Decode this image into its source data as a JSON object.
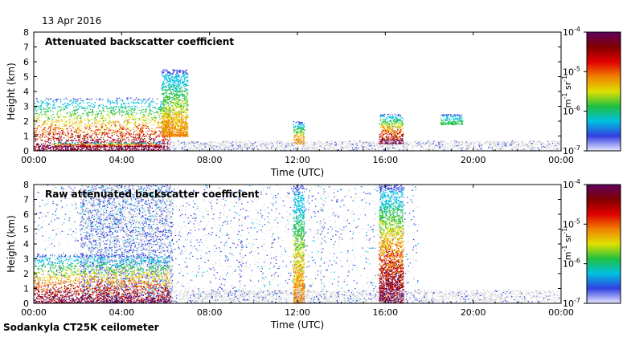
{
  "date": "13 Apr 2016",
  "instrument": "Sodankyla CT25K ceilometer",
  "colors": {
    "colormap": [
      "#e8e8ff",
      "#3040e0",
      "#00c0e0",
      "#20c040",
      "#e0e000",
      "#f08000",
      "#e00000",
      "#800000",
      "#600060"
    ],
    "no_signal_gray": "#d8d8d8"
  },
  "chart_data": [
    {
      "type": "heatmap",
      "title": "Attenuated backscatter coefficient",
      "xlabel": "Time (UTC)",
      "ylabel": "Height (km)",
      "xticks": [
        "00:00",
        "04:00",
        "08:00",
        "12:00",
        "16:00",
        "20:00",
        "00:00"
      ],
      "xlim_hours": [
        0,
        24
      ],
      "ylim_km": [
        0,
        8
      ],
      "yticks": [
        "0",
        "1",
        "2",
        "3",
        "4",
        "5",
        "6",
        "7",
        "8"
      ],
      "colorbar": {
        "unit_label": "m-1 sr-1",
        "tick_labels": [
          "10-7",
          "10-6",
          "10-5",
          "10-4"
        ],
        "log_scale": true,
        "range": [
          1e-07,
          0.0001
        ]
      },
      "features": [
        {
          "description": "low boundary layer cloud/aerosol",
          "time_h": [
            0,
            6.2
          ],
          "height_km": [
            0,
            3.6
          ],
          "max_intensity": "1e-4"
        },
        {
          "description": "thin layer near 0.3-0.5 km",
          "time_h": [
            0.8,
            5.8
          ],
          "height_km": [
            0.3,
            0.6
          ],
          "max_intensity": "1e-4"
        },
        {
          "description": "isolated elevated echoes",
          "time_h": [
            5.8,
            7
          ],
          "height_km": [
            1,
            5.5
          ],
          "max_intensity": "1e-5"
        },
        {
          "description": "shower column",
          "time_h": [
            11.8,
            12.3
          ],
          "height_km": [
            0.5,
            2
          ],
          "max_intensity": "1e-5"
        },
        {
          "description": "shower column",
          "time_h": [
            15.7,
            16.8
          ],
          "height_km": [
            0.5,
            2.5
          ],
          "max_intensity": "1e-4"
        },
        {
          "description": "weak layer",
          "time_h": [
            18.5,
            19.5
          ],
          "height_km": [
            1.8,
            2.5
          ],
          "max_intensity": "1e-6"
        }
      ]
    },
    {
      "type": "heatmap",
      "title": "Raw attenuated backscatter coefficient",
      "xlabel": "Time (UTC)",
      "ylabel": "Height (km)",
      "xticks": [
        "00:00",
        "04:00",
        "08:00",
        "12:00",
        "16:00",
        "20:00",
        "00:00"
      ],
      "xlim_hours": [
        0,
        24
      ],
      "ylim_km": [
        0,
        8
      ],
      "yticks": [
        "0",
        "1",
        "2",
        "3",
        "4",
        "5",
        "6",
        "7",
        "8"
      ],
      "colorbar": {
        "unit_label": "m-1 sr-1",
        "tick_labels": [
          "10-7",
          "10-6",
          "10-5",
          "10-4"
        ],
        "log_scale": true,
        "range": [
          1e-07,
          0.0001
        ]
      },
      "features": [
        {
          "description": "noise background",
          "time_h": [
            0,
            17.5
          ],
          "height_km": [
            0,
            8
          ],
          "max_intensity": "1e-6"
        },
        {
          "description": "dense noise",
          "time_h": [
            2.1,
            6.3
          ],
          "height_km": [
            0,
            8
          ],
          "max_intensity": "1e-6"
        },
        {
          "description": "low boundary layer cloud/aerosol",
          "time_h": [
            0,
            6.2
          ],
          "height_km": [
            0,
            3.3
          ],
          "max_intensity": "1e-4"
        },
        {
          "description": "vertical streak",
          "time_h": [
            9.3,
            9.5
          ],
          "height_km": [
            0,
            8
          ],
          "max_intensity": "1e-6"
        },
        {
          "description": "shower column",
          "time_h": [
            11.8,
            12.3
          ],
          "height_km": [
            0,
            8
          ],
          "max_intensity": "1e-5"
        },
        {
          "description": "vertical streak",
          "time_h": [
            13,
            13.2
          ],
          "height_km": [
            0,
            8
          ],
          "max_intensity": "1e-6"
        },
        {
          "description": "shower column",
          "time_h": [
            15.7,
            16.8
          ],
          "height_km": [
            0,
            8
          ],
          "max_intensity": "1e-4"
        }
      ]
    }
  ]
}
